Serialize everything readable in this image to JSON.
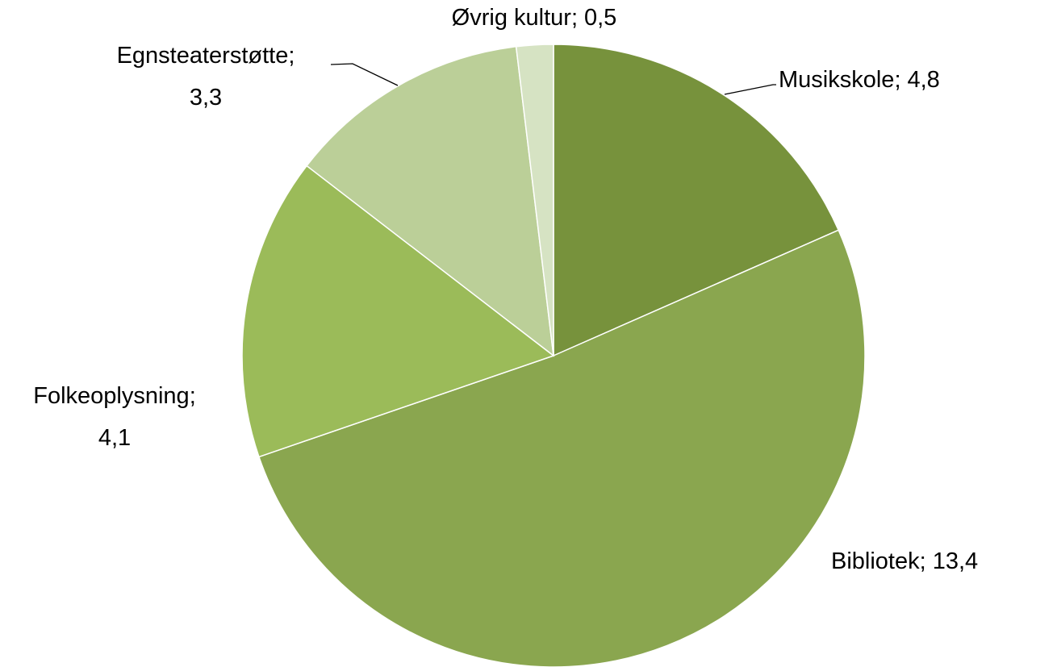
{
  "chart_data": {
    "type": "pie",
    "categories": [
      "Musikskole",
      "Bibliotek",
      "Folkeoplysning",
      "Egnsteaterstøtte",
      "Øvrig kultur"
    ],
    "values": [
      4.8,
      13.4,
      4.1,
      3.3,
      0.5
    ],
    "value_labels": [
      "4,8",
      "13,4",
      "4,1",
      "3,3",
      "0,5"
    ],
    "label_separator": ";",
    "colors": [
      "#77923c",
      "#8aa64f",
      "#9bbb59",
      "#bbcf98",
      "#d6e3c3"
    ]
  }
}
